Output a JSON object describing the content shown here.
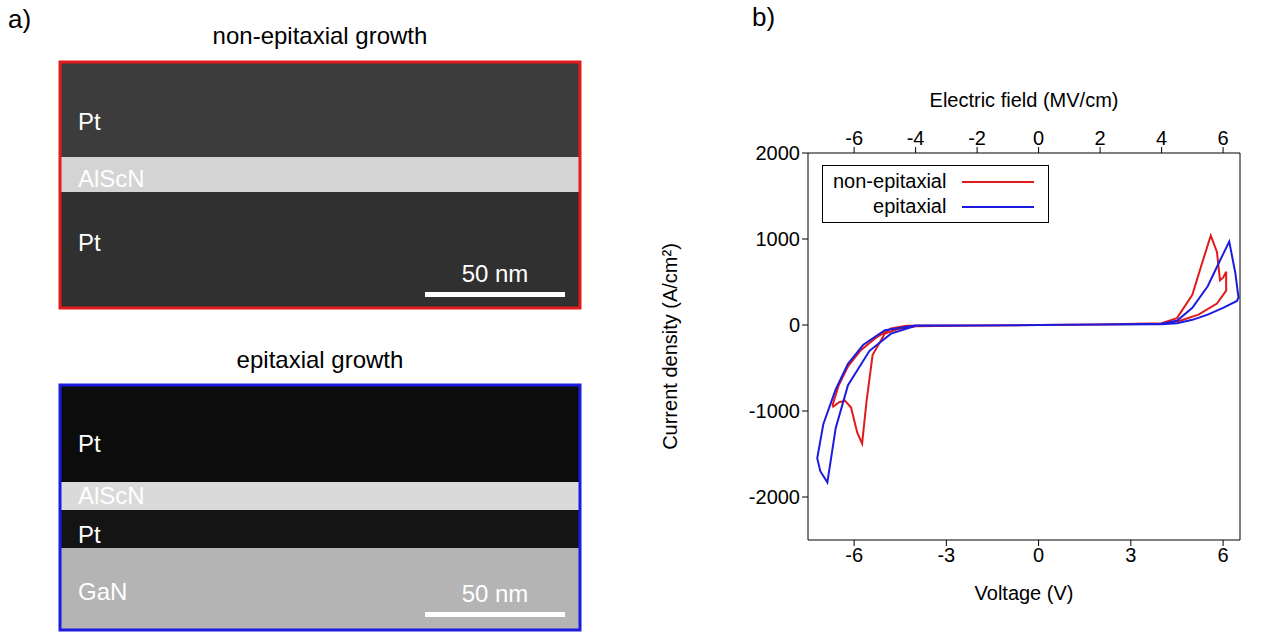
{
  "panel_letters": [
    "a)",
    "b)"
  ],
  "panel_a": {
    "images": [
      {
        "title": "non-epitaxial growth",
        "color": "#e31a1c",
        "layers": [
          "Pt",
          "AlScN",
          "Pt"
        ],
        "scale_bar": "50 nm"
      },
      {
        "title": "epitaxial growth",
        "color": "#1c1ce0",
        "layers": [
          "Pt",
          "AlScN",
          "Pt",
          "GaN"
        ],
        "scale_bar": "50 nm"
      }
    ]
  },
  "chart_data": {
    "type": "line",
    "x_label": "Voltage (V)",
    "x2_label": "Electric field (MV/cm)",
    "y_label": "Current density (A/cm²)",
    "xlim": [
      -7.5,
      6.55
    ],
    "xticks": [
      -6,
      -3,
      0,
      3,
      6
    ],
    "x2lim": [
      -7.5,
      6.55
    ],
    "x2ticks": [
      -6,
      -4,
      -2,
      0,
      2,
      4,
      6
    ],
    "ylim": [
      -2500,
      2000
    ],
    "yticks": [
      -2000,
      -1000,
      0,
      1000,
      2000
    ],
    "legend": "upper left",
    "series": [
      {
        "name": "non-epitaxial",
        "color": "#e31a1c",
        "x": [
          0,
          2,
          4,
          4.5,
          5,
          5.3,
          5.6,
          5.8,
          5.9,
          6.0,
          6.1,
          6.1,
          5.8,
          5.2,
          4.6,
          4,
          2,
          0,
          -2,
          -4,
          -4.6,
          -5.0,
          -5.4,
          -5.6,
          -5.74,
          -5.9,
          -6.1,
          -6.3,
          -6.5,
          -6.68,
          -6.7,
          -6.5,
          -6.2,
          -5.8,
          -5.3,
          -4.8,
          -4.3,
          -2,
          0
        ],
        "values": [
          0,
          5,
          20,
          80,
          350,
          700,
          1040,
          850,
          520,
          550,
          620,
          400,
          250,
          120,
          50,
          15,
          5,
          0,
          -5,
          -15,
          -50,
          -100,
          -350,
          -900,
          -1380,
          -1250,
          -960,
          -880,
          -900,
          -950,
          -930,
          -700,
          -480,
          -300,
          -150,
          -40,
          -10,
          -5,
          0
        ]
      },
      {
        "name": "epitaxial",
        "color": "#1c1ce0",
        "x": [
          0,
          2,
          4,
          4.5,
          5,
          5.5,
          5.9,
          6.2,
          6.4,
          6.5,
          6.45,
          6,
          5.5,
          5,
          4.5,
          4,
          2,
          0,
          -2,
          -4,
          -4.8,
          -5.5,
          -6.2,
          -6.6,
          -6.87,
          -7.1,
          -7.2,
          -7.0,
          -6.6,
          -6.2,
          -5.7,
          -5.0,
          -4.0,
          -2,
          0
        ],
        "values": [
          0,
          5,
          15,
          50,
          200,
          450,
          750,
          970,
          600,
          320,
          280,
          200,
          120,
          60,
          20,
          10,
          5,
          0,
          -5,
          -10,
          -100,
          -300,
          -700,
          -1200,
          -1830,
          -1700,
          -1550,
          -1150,
          -750,
          -450,
          -230,
          -60,
          -5,
          -5,
          0
        ]
      }
    ]
  }
}
